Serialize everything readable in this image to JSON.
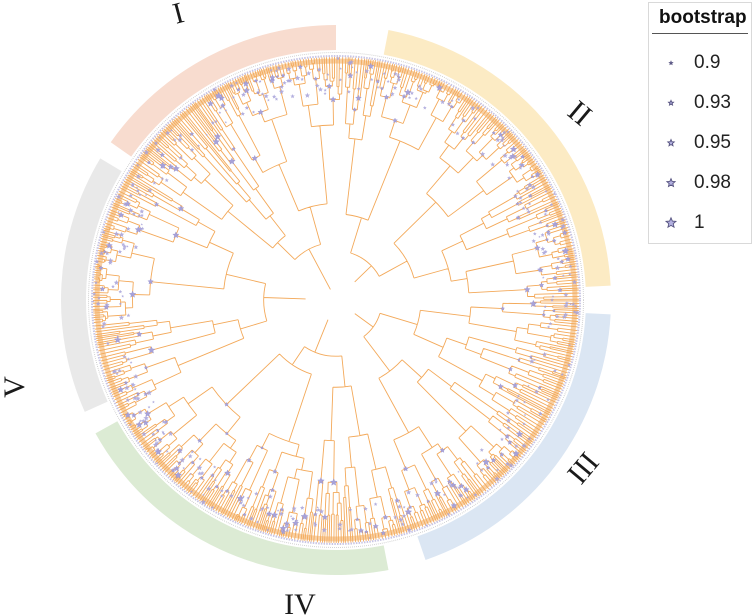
{
  "figure": {
    "clades": [
      {
        "label": "I",
        "color": "#f8dccf"
      },
      {
        "label": "II",
        "color": "#fcebc4"
      },
      {
        "label": "III",
        "color": "#dbe6f3"
      },
      {
        "label": "IV",
        "color": "#dcebd4"
      },
      {
        "label": "V",
        "color": "#e9e9e9"
      }
    ],
    "branch_color": "#f3a95a",
    "support_marker_color": "#a7a2d9"
  },
  "legend": {
    "title": "bootstrap",
    "items": [
      {
        "label": "0.9",
        "value": 0.9
      },
      {
        "label": "0.93",
        "value": 0.93
      },
      {
        "label": "0.95",
        "value": 0.95
      },
      {
        "label": "0.98",
        "value": 0.98
      },
      {
        "label": "1",
        "value": 1
      }
    ]
  }
}
